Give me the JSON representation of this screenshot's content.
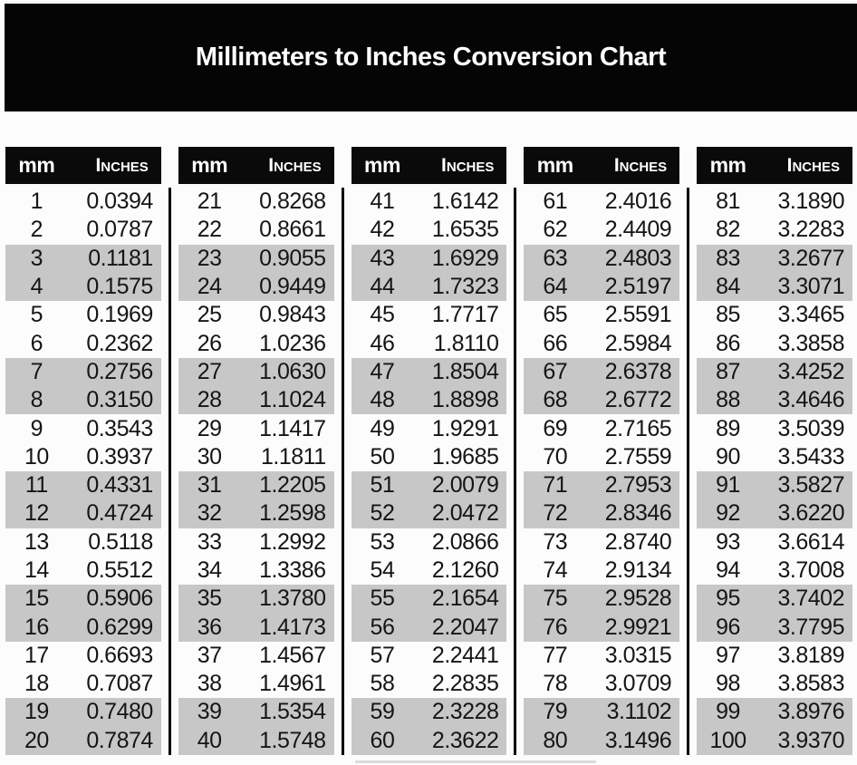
{
  "colors": {
    "page_bg": "#fcfcfc",
    "banner_bg": "#050505",
    "header_bg": "#0a0a0a",
    "header_text": "#ffffff",
    "stripe": "#c7c7c7",
    "divider": "#000000",
    "text": "#151515"
  },
  "chart_data": {
    "type": "table",
    "title": "Millimeters to Inches Conversion Chart",
    "columns": [
      "mm",
      "Inches"
    ],
    "layout": {
      "group_count": 5,
      "rows_per_group": 20,
      "stripe_pattern": "alternating pairs of rows shaded gray (rows 3-4, 7-8, 11-12, 15-16, 19-20 of each group)"
    },
    "groups": [
      [
        [
          "1",
          "0.0394"
        ],
        [
          "2",
          "0.0787"
        ],
        [
          "3",
          "0.1181"
        ],
        [
          "4",
          "0.1575"
        ],
        [
          "5",
          "0.1969"
        ],
        [
          "6",
          "0.2362"
        ],
        [
          "7",
          "0.2756"
        ],
        [
          "8",
          "0.3150"
        ],
        [
          "9",
          "0.3543"
        ],
        [
          "10",
          "0.3937"
        ],
        [
          "11",
          "0.4331"
        ],
        [
          "12",
          "0.4724"
        ],
        [
          "13",
          "0.5118"
        ],
        [
          "14",
          "0.5512"
        ],
        [
          "15",
          "0.5906"
        ],
        [
          "16",
          "0.6299"
        ],
        [
          "17",
          "0.6693"
        ],
        [
          "18",
          "0.7087"
        ],
        [
          "19",
          "0.7480"
        ],
        [
          "20",
          "0.7874"
        ]
      ],
      [
        [
          "21",
          "0.8268"
        ],
        [
          "22",
          "0.8661"
        ],
        [
          "23",
          "0.9055"
        ],
        [
          "24",
          "0.9449"
        ],
        [
          "25",
          "0.9843"
        ],
        [
          "26",
          "1.0236"
        ],
        [
          "27",
          "1.0630"
        ],
        [
          "28",
          "1.1024"
        ],
        [
          "29",
          "1.1417"
        ],
        [
          "30",
          "1.1811"
        ],
        [
          "31",
          "1.2205"
        ],
        [
          "32",
          "1.2598"
        ],
        [
          "33",
          "1.2992"
        ],
        [
          "34",
          "1.3386"
        ],
        [
          "35",
          "1.3780"
        ],
        [
          "36",
          "1.4173"
        ],
        [
          "37",
          "1.4567"
        ],
        [
          "38",
          "1.4961"
        ],
        [
          "39",
          "1.5354"
        ],
        [
          "40",
          "1.5748"
        ]
      ],
      [
        [
          "41",
          "1.6142"
        ],
        [
          "42",
          "1.6535"
        ],
        [
          "43",
          "1.6929"
        ],
        [
          "44",
          "1.7323"
        ],
        [
          "45",
          "1.7717"
        ],
        [
          "46",
          "1.8110"
        ],
        [
          "47",
          "1.8504"
        ],
        [
          "48",
          "1.8898"
        ],
        [
          "49",
          "1.9291"
        ],
        [
          "50",
          "1.9685"
        ],
        [
          "51",
          "2.0079"
        ],
        [
          "52",
          "2.0472"
        ],
        [
          "53",
          "2.0866"
        ],
        [
          "54",
          "2.1260"
        ],
        [
          "55",
          "2.1654"
        ],
        [
          "56",
          "2.2047"
        ],
        [
          "57",
          "2.2441"
        ],
        [
          "58",
          "2.2835"
        ],
        [
          "59",
          "2.3228"
        ],
        [
          "60",
          "2.3622"
        ]
      ],
      [
        [
          "61",
          "2.4016"
        ],
        [
          "62",
          "2.4409"
        ],
        [
          "63",
          "2.4803"
        ],
        [
          "64",
          "2.5197"
        ],
        [
          "65",
          "2.5591"
        ],
        [
          "66",
          "2.5984"
        ],
        [
          "67",
          "2.6378"
        ],
        [
          "68",
          "2.6772"
        ],
        [
          "69",
          "2.7165"
        ],
        [
          "70",
          "2.7559"
        ],
        [
          "71",
          "2.7953"
        ],
        [
          "72",
          "2.8346"
        ],
        [
          "73",
          "2.8740"
        ],
        [
          "74",
          "2.9134"
        ],
        [
          "75",
          "2.9528"
        ],
        [
          "76",
          "2.9921"
        ],
        [
          "77",
          "3.0315"
        ],
        [
          "78",
          "3.0709"
        ],
        [
          "79",
          "3.1102"
        ],
        [
          "80",
          "3.1496"
        ]
      ],
      [
        [
          "81",
          "3.1890"
        ],
        [
          "82",
          "3.2283"
        ],
        [
          "83",
          "3.2677"
        ],
        [
          "84",
          "3.3071"
        ],
        [
          "85",
          "3.3465"
        ],
        [
          "86",
          "3.3858"
        ],
        [
          "87",
          "3.4252"
        ],
        [
          "88",
          "3.4646"
        ],
        [
          "89",
          "3.5039"
        ],
        [
          "90",
          "3.5433"
        ],
        [
          "91",
          "3.5827"
        ],
        [
          "92",
          "3.6220"
        ],
        [
          "93",
          "3.6614"
        ],
        [
          "94",
          "3.7008"
        ],
        [
          "95",
          "3.7402"
        ],
        [
          "96",
          "3.7795"
        ],
        [
          "97",
          "3.8189"
        ],
        [
          "98",
          "3.8583"
        ],
        [
          "99",
          "3.8976"
        ],
        [
          "100",
          "3.9370"
        ]
      ]
    ]
  }
}
